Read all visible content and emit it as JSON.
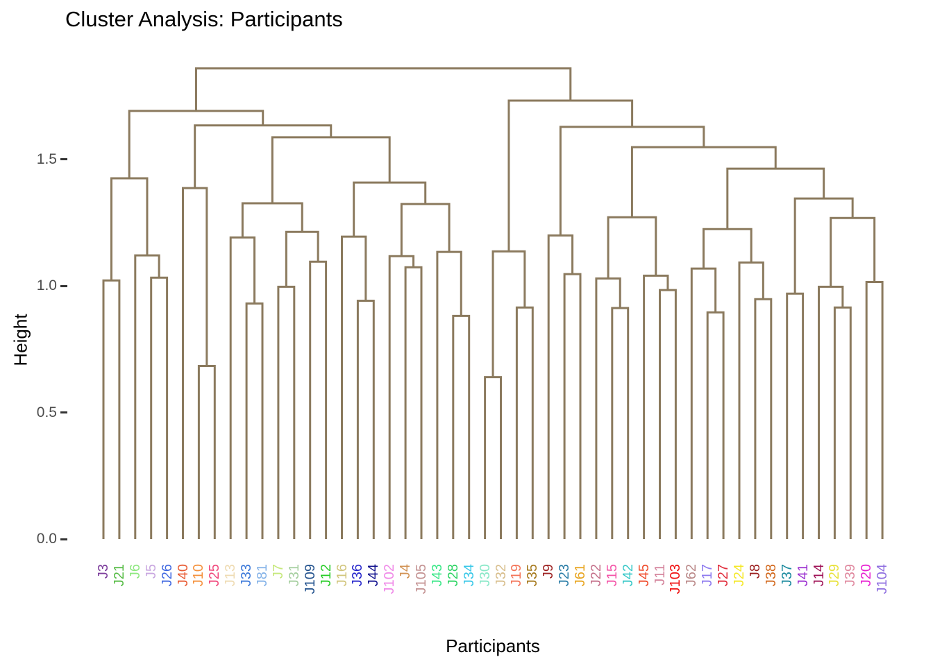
{
  "title": "Cluster Analysis: Participants",
  "axes": {
    "y_label": "Height",
    "x_label": "Participants",
    "y_ticks": [
      {
        "label": "0.0",
        "value": 0.0
      },
      {
        "label": "0.5",
        "value": 0.5
      },
      {
        "label": "1.0",
        "value": 1.0
      },
      {
        "label": "1.5",
        "value": 1.5
      }
    ]
  },
  "style": {
    "branch_color": "#8B7A5E",
    "branch_width": 3,
    "tick_mark_color": "#333333",
    "tick_label_color": "#4D4D4D",
    "title_color": "#000000"
  },
  "chart_data": {
    "type": "dendrogram",
    "title": "Cluster Analysis: Participants",
    "xlabel": "Participants",
    "ylabel": "Height",
    "ylim": [
      0,
      1.86
    ],
    "grid": false,
    "leaves": [
      {
        "label": "J3",
        "color": "#7E3F9D"
      },
      {
        "label": "J21",
        "color": "#55BB44"
      },
      {
        "label": "J6",
        "color": "#8FE881"
      },
      {
        "label": "J5",
        "color": "#C9A7E0"
      },
      {
        "label": "J26",
        "color": "#4169E1"
      },
      {
        "label": "J40",
        "color": "#E85C35"
      },
      {
        "label": "J10",
        "color": "#F5923E"
      },
      {
        "label": "J25",
        "color": "#F04A7D"
      },
      {
        "label": "J13",
        "color": "#EFDCB4"
      },
      {
        "label": "J33",
        "color": "#3F7BDA"
      },
      {
        "label": "J81",
        "color": "#85B3E8"
      },
      {
        "label": "J7",
        "color": "#C6E87C"
      },
      {
        "label": "J31",
        "color": "#A6CFA0"
      },
      {
        "label": "J109",
        "color": "#25548F"
      },
      {
        "label": "J12",
        "color": "#28CC28"
      },
      {
        "label": "J16",
        "color": "#D2C67E"
      },
      {
        "label": "J36",
        "color": "#2929CC"
      },
      {
        "label": "J44",
        "color": "#14148F"
      },
      {
        "label": "J102",
        "color": "#F08AE8"
      },
      {
        "label": "J4",
        "color": "#D29355"
      },
      {
        "label": "J105",
        "color": "#C49393"
      },
      {
        "label": "J43",
        "color": "#3EE88A"
      },
      {
        "label": "J28",
        "color": "#2FD465"
      },
      {
        "label": "J34",
        "color": "#3BC8E8"
      },
      {
        "label": "J30",
        "color": "#8AE8C8"
      },
      {
        "label": "J32",
        "color": "#D8BE8C"
      },
      {
        "label": "J19",
        "color": "#F4765A"
      },
      {
        "label": "J35",
        "color": "#A67A1E"
      },
      {
        "label": "J9",
        "color": "#9E2424"
      },
      {
        "label": "J23",
        "color": "#2E7FA8"
      },
      {
        "label": "J61",
        "color": "#E8A520"
      },
      {
        "label": "J22",
        "color": "#C4708A"
      },
      {
        "label": "J15",
        "color": "#F455A8"
      },
      {
        "label": "J42",
        "color": "#38C8C8"
      },
      {
        "label": "J45",
        "color": "#EF4B2B"
      },
      {
        "label": "J11",
        "color": "#D4849C"
      },
      {
        "label": "J103",
        "color": "#F01414"
      },
      {
        "label": "J62",
        "color": "#BB8A8A"
      },
      {
        "label": "J17",
        "color": "#8E7BEF"
      },
      {
        "label": "J27",
        "color": "#E02D3C"
      },
      {
        "label": "J24",
        "color": "#F5E829"
      },
      {
        "label": "J8",
        "color": "#9C2020"
      },
      {
        "label": "J38",
        "color": "#D2691E"
      },
      {
        "label": "J37",
        "color": "#1B8A9E"
      },
      {
        "label": "J41",
        "color": "#9B30D0"
      },
      {
        "label": "J14",
        "color": "#A01458"
      },
      {
        "label": "J29",
        "color": "#E8E23D"
      },
      {
        "label": "J39",
        "color": "#E08AA0"
      },
      {
        "label": "J20",
        "color": "#E81FD1"
      },
      {
        "label": "J104",
        "color": "#9070E0"
      }
    ],
    "tree": {
      "h": 1.86,
      "c": [
        {
          "h": 1.692,
          "c": [
            {
              "h": 1.426,
              "c": [
                {
                  "h": 1.022,
                  "c": [
                    "J3",
                    "J21"
                  ]
                },
                {
                  "h": 1.121,
                  "c": [
                    "J6",
                    {
                      "h": 1.033,
                      "c": [
                        "J5",
                        "J26"
                      ]
                    }
                  ]
                }
              ]
            },
            {
              "h": 1.635,
              "c": [
                {
                  "h": 1.387,
                  "c": [
                    "J40",
                    {
                      "h": 0.684,
                      "c": [
                        "J10",
                        "J25"
                      ]
                    }
                  ]
                },
                {
                  "h": 1.588,
                  "c": [
                    {
                      "h": 1.327,
                      "c": [
                        {
                          "h": 1.192,
                          "c": [
                            "J13",
                            {
                              "h": 0.931,
                              "c": [
                                "J33",
                                "J81"
                              ]
                            }
                          ]
                        },
                        {
                          "h": 1.214,
                          "c": [
                            {
                              "h": 0.997,
                              "c": [
                                "J7",
                                "J31"
                              ]
                            },
                            {
                              "h": 1.096,
                              "c": [
                                "J109",
                                "J12"
                              ]
                            }
                          ]
                        }
                      ]
                    },
                    {
                      "h": 1.409,
                      "c": [
                        {
                          "h": 1.195,
                          "c": [
                            "J16",
                            {
                              "h": 0.942,
                              "c": [
                                "J36",
                                "J44"
                              ]
                            }
                          ]
                        },
                        {
                          "h": 1.324,
                          "c": [
                            {
                              "h": 1.118,
                              "c": [
                                "J102",
                                {
                                  "h": 1.074,
                                  "c": [
                                    "J4",
                                    "J105"
                                  ]
                                }
                              ]
                            },
                            {
                              "h": 1.135,
                              "c": [
                                "J43",
                                {
                                  "h": 0.882,
                                  "c": [
                                    "J28",
                                    "J34"
                                  ]
                                }
                              ]
                            }
                          ]
                        }
                      ]
                    }
                  ]
                }
              ]
            }
          ]
        },
        {
          "h": 1.733,
          "c": [
            {
              "h": 1.137,
              "c": [
                {
                  "h": 0.64,
                  "c": [
                    "J30",
                    "J32"
                  ]
                },
                {
                  "h": 0.915,
                  "c": [
                    "J19",
                    "J35"
                  ]
                }
              ]
            },
            {
              "h": 1.629,
              "c": [
                {
                  "h": 1.2,
                  "c": [
                    "J9",
                    {
                      "h": 1.047,
                      "c": [
                        "J23",
                        "J61"
                      ]
                    }
                  ]
                },
                {
                  "h": 1.549,
                  "c": [
                    {
                      "h": 1.272,
                      "c": [
                        {
                          "h": 1.03,
                          "c": [
                            "J22",
                            {
                              "h": 0.913,
                              "c": [
                                "J15",
                                "J42"
                              ]
                            }
                          ]
                        },
                        {
                          "h": 1.041,
                          "c": [
                            "J45",
                            {
                              "h": 0.984,
                              "c": [
                                "J11",
                                "J103"
                              ]
                            }
                          ]
                        }
                      ]
                    },
                    {
                      "h": 1.464,
                      "c": [
                        {
                          "h": 1.225,
                          "c": [
                            {
                              "h": 1.069,
                              "c": [
                                "J62",
                                {
                                  "h": 0.896,
                                  "c": [
                                    "J17",
                                    "J27"
                                  ]
                                }
                              ]
                            },
                            {
                              "h": 1.093,
                              "c": [
                                "J24",
                                {
                                  "h": 0.948,
                                  "c": [
                                    "J8",
                                    "J38"
                                  ]
                                }
                              ]
                            }
                          ]
                        },
                        {
                          "h": 1.346,
                          "c": [
                            {
                              "h": 0.97,
                              "c": [
                                "J37",
                                "J41"
                              ]
                            },
                            {
                              "h": 1.269,
                              "c": [
                                {
                                  "h": 0.997,
                                  "c": [
                                    "J14",
                                    {
                                      "h": 0.915,
                                      "c": [
                                        "J29",
                                        "J39"
                                      ]
                                    }
                                  ]
                                },
                                {
                                  "h": 1.016,
                                  "c": [
                                    "J20",
                                    "J104"
                                  ]
                                }
                              ]
                            }
                          ]
                        }
                      ]
                    }
                  ]
                }
              ]
            }
          ]
        }
      ]
    }
  }
}
